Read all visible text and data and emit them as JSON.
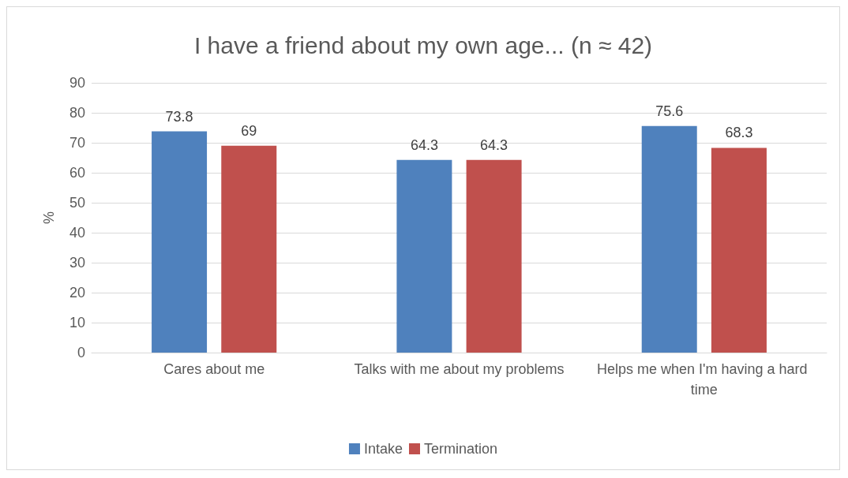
{
  "chart_data": {
    "type": "bar",
    "title": "I have a friend about my own age... (n ≈ 42)",
    "ylabel": "%",
    "categories": [
      "Cares about me",
      "Talks with me about my problems",
      "Helps me when I'm having a hard time"
    ],
    "series": [
      {
        "name": "Intake",
        "color": "#4f81bd",
        "values": [
          73.8,
          64.3,
          75.6
        ]
      },
      {
        "name": "Termination",
        "color": "#c0504d",
        "values": [
          69,
          64.3,
          68.3
        ]
      }
    ],
    "ylim": [
      0,
      90
    ],
    "yticks": [
      0,
      10,
      20,
      30,
      40,
      50,
      60,
      70,
      80,
      90
    ],
    "grid": "y",
    "legend": "bottom",
    "data_labels": true
  }
}
